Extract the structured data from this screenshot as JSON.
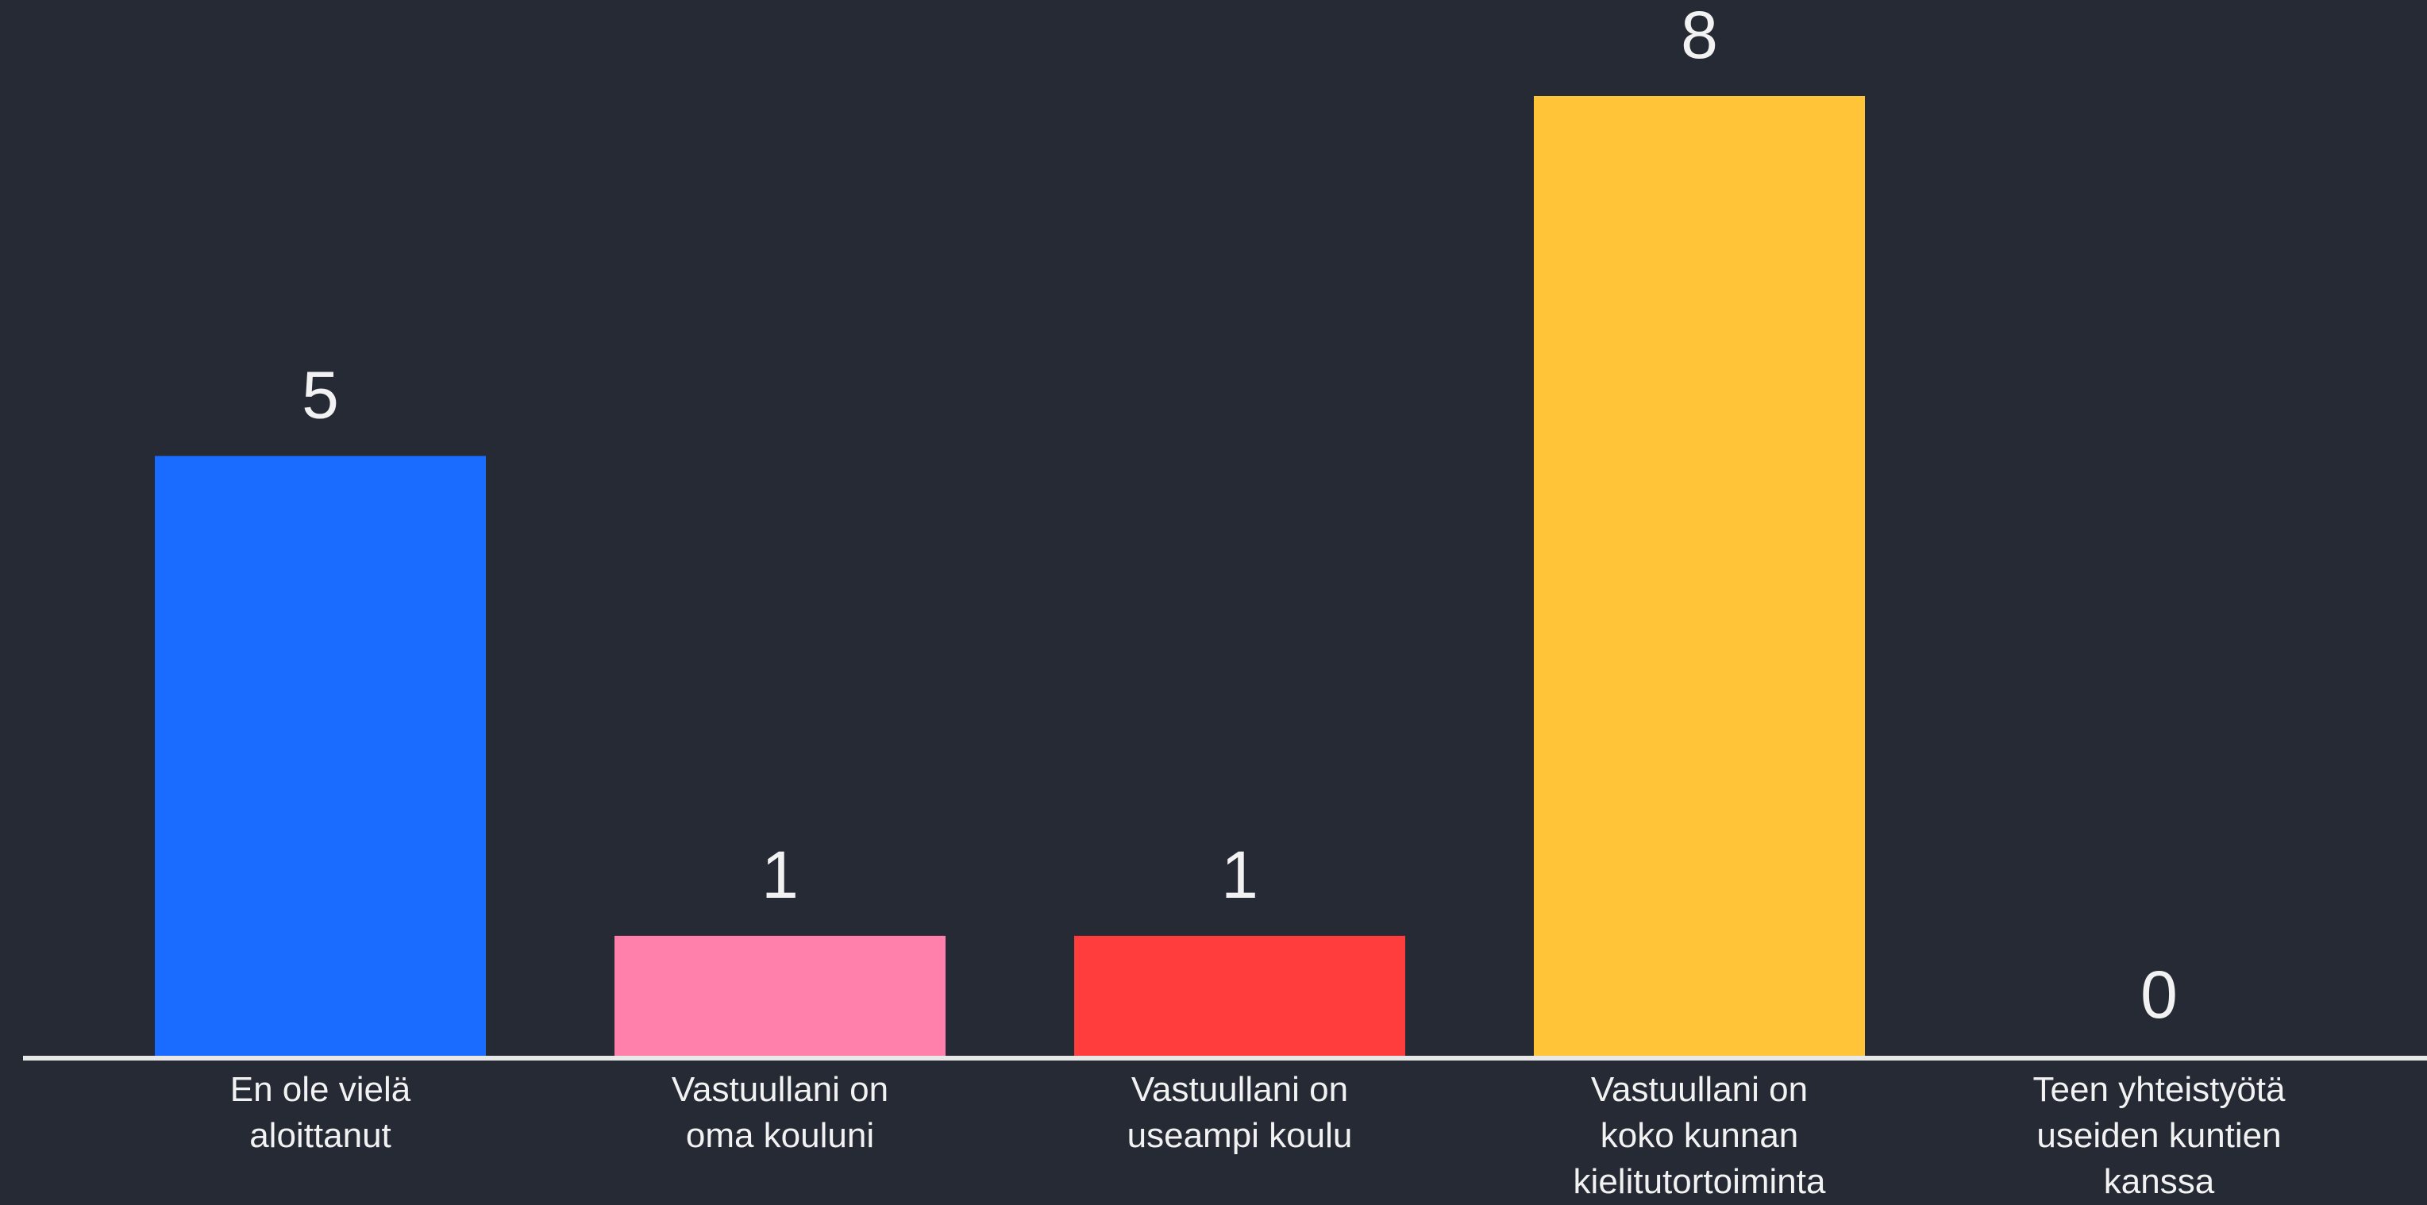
{
  "chart_data": {
    "type": "bar",
    "categories": [
      "En ole vielä\naloittanut",
      "Vastuullani on\noma kouluni",
      "Vastuullani on\nuseampi koulu",
      "Vastuullani on\nkoko kunnan\nkielitutortoiminta",
      "Teen yhteistyötä\nuseiden kuntien\nkanssa"
    ],
    "values": [
      5,
      1,
      1,
      8,
      0
    ],
    "colors": [
      "#1a6bff",
      "#ff80aa",
      "#ff3d3d",
      "#ffc438",
      "#9b6bff"
    ]
  }
}
